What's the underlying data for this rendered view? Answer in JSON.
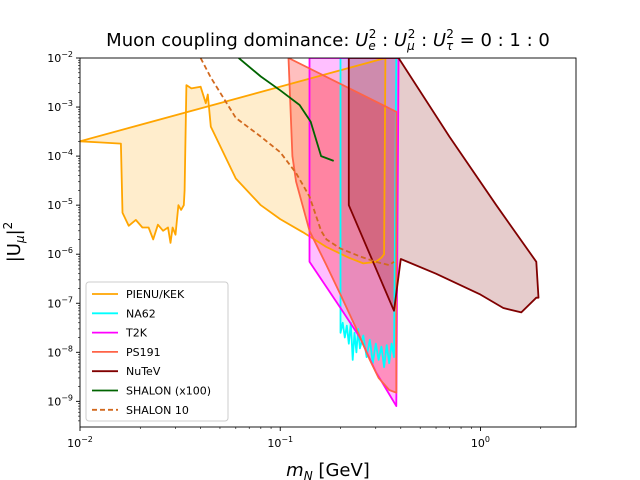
{
  "chart_data": {
    "type": "line",
    "title_parts": {
      "prefix": "Muon coupling dominance: ",
      "formula": [
        "U",
        "e",
        "2",
        " : ",
        "U",
        "μ",
        "2",
        " : ",
        "U",
        "τ",
        "2",
        " = 0 : 1 : 0"
      ]
    },
    "xlabel": {
      "var": "m",
      "sub": "N",
      "unit": " [GeV]"
    },
    "ylabel": {
      "text": "|U",
      "sub": "μ",
      "close": "|",
      "sup": "2"
    },
    "x_scale": "log",
    "y_scale": "log",
    "xlim": [
      0.01,
      3.0
    ],
    "ylim": [
      3e-10,
      0.01
    ],
    "x_ticks": [
      {
        "value": 0.01,
        "base": "10",
        "exp": "−2"
      },
      {
        "value": 0.1,
        "base": "10",
        "exp": "−1"
      },
      {
        "value": 1.0,
        "base": "10",
        "exp": "0"
      }
    ],
    "y_ticks": [
      {
        "value": 1e-09,
        "base": "10",
        "exp": "−9"
      },
      {
        "value": 1e-08,
        "base": "10",
        "exp": "−8"
      },
      {
        "value": 1e-07,
        "base": "10",
        "exp": "−7"
      },
      {
        "value": 1e-06,
        "base": "10",
        "exp": "−6"
      },
      {
        "value": 1e-05,
        "base": "10",
        "exp": "−5"
      },
      {
        "value": 0.0001,
        "base": "10",
        "exp": "−4"
      },
      {
        "value": 0.001,
        "base": "10",
        "exp": "−3"
      },
      {
        "value": 0.01,
        "base": "10",
        "exp": "−2"
      }
    ],
    "grid": false,
    "legend_position": "lower-left",
    "series": [
      {
        "name": "PIENU/KEK",
        "color": "#FFA500",
        "fill": "#FFA500",
        "fill_opacity": 0.2,
        "style": "solid",
        "x": [
          0.01,
          0.0125,
          0.016,
          0.0163,
          0.0175,
          0.019,
          0.0205,
          0.022,
          0.0232,
          0.0245,
          0.026,
          0.0275,
          0.0283,
          0.029,
          0.03,
          0.031,
          0.032,
          0.033,
          0.0333,
          0.034,
          0.036,
          0.04,
          0.0425,
          0.0435,
          0.045,
          0.06,
          0.08,
          0.1,
          0.13,
          0.17,
          0.22,
          0.26,
          0.3,
          0.32,
          0.33,
          0.335
        ],
        "y": [
          0.0002,
          0.00019,
          0.00018,
          7e-06,
          3.8e-06,
          5e-06,
          3.5e-06,
          3.5e-06,
          2e-06,
          4e-06,
          3e-06,
          3.5e-06,
          1.7e-06,
          3.5e-06,
          2.5e-06,
          1e-05,
          8e-06,
          1e-05,
          2e-05,
          0.0028,
          0.0024,
          0.0026,
          0.0012,
          0.0018,
          0.0004,
          3.5e-05,
          1e-05,
          5.2e-06,
          2.8e-06,
          1.4e-06,
          8.5e-07,
          6.5e-07,
          7e-07,
          8.5e-07,
          1e-06,
          0.01
        ],
        "closed": true
      },
      {
        "name": "NA62",
        "color": "#00FFFF",
        "fill": "#00CED1",
        "fill_opacity": 0.15,
        "style": "solid",
        "x": [
          0.2,
          0.2,
          0.205,
          0.21,
          0.215,
          0.22,
          0.225,
          0.23,
          0.235,
          0.24,
          0.245,
          0.25,
          0.26,
          0.27,
          0.28,
          0.29,
          0.3,
          0.31,
          0.32,
          0.33,
          0.34,
          0.35,
          0.36,
          0.365,
          0.37,
          0.38
        ],
        "y": [
          0.01,
          2.5e-08,
          4e-08,
          2e-08,
          3.5e-08,
          1.5e-08,
          4e-08,
          7e-09,
          2.5e-08,
          1e-08,
          3e-08,
          1.2e-08,
          2.2e-08,
          8e-09,
          1.8e-08,
          6e-09,
          1.5e-08,
          7e-09,
          1.3e-08,
          5e-09,
          1.4e-08,
          6e-09,
          1.5e-08,
          1.1e-08,
          8e-09,
          0.01
        ],
        "closed": true
      },
      {
        "name": "T2K",
        "color": "#FF00FF",
        "fill": "#FF00FF",
        "fill_opacity": 0.25,
        "style": "solid",
        "x": [
          0.14,
          0.14,
          0.2,
          0.25,
          0.3,
          0.34,
          0.38,
          0.39
        ],
        "y": [
          0.01,
          7e-07,
          8e-08,
          2e-08,
          4e-09,
          1.7e-09,
          8e-10,
          0.01
        ],
        "closed": true
      },
      {
        "name": "PS191",
        "color": "#FF6347",
        "fill": "#FF0000",
        "fill_opacity": 0.25,
        "style": "solid",
        "x": [
          0.11,
          0.115,
          0.12,
          0.14,
          0.17,
          0.2,
          0.24,
          0.28,
          0.31,
          0.35,
          0.38,
          0.38
        ],
        "y": [
          0.01,
          0.0001,
          3e-05,
          3e-06,
          6e-07,
          1.5e-07,
          3e-08,
          7e-09,
          3e-09,
          1.7e-09,
          1.5e-09,
          0.0008
        ],
        "closed": true
      },
      {
        "name": "NuTeV",
        "color": "#800000",
        "fill": "#800000",
        "fill_opacity": 0.2,
        "style": "solid",
        "x": [
          0.22,
          0.22,
          0.37,
          0.4,
          0.6,
          1.0,
          1.3,
          1.6,
          1.9,
          1.95,
          1.9,
          1.2,
          0.7,
          0.39
        ],
        "y": [
          0.01,
          1e-05,
          7e-08,
          8e-07,
          4e-07,
          1.5e-07,
          8e-08,
          6.5e-08,
          1.3e-07,
          1.3e-07,
          7e-07,
          1e-05,
          0.00025,
          0.01
        ],
        "closed": true
      },
      {
        "name": "SHALON (x100)",
        "color": "#006400",
        "fill": "none",
        "fill_opacity": 0,
        "style": "solid",
        "x": [
          0.062,
          0.08,
          0.1,
          0.125,
          0.142,
          0.16,
          0.185
        ],
        "y": [
          0.01,
          0.0042,
          0.0022,
          0.0011,
          0.0005,
          0.0001,
          8e-05
        ],
        "closed": false
      },
      {
        "name": "SHALON 10",
        "color": "#D2691E",
        "fill": "none",
        "fill_opacity": 0,
        "style": "dashed",
        "x": [
          0.04,
          0.045,
          0.06,
          0.08,
          0.1,
          0.12,
          0.14,
          0.16,
          0.17,
          0.2,
          0.25,
          0.3,
          0.35,
          0.37
        ],
        "y": [
          0.01,
          0.004,
          0.0006,
          0.00025,
          0.00012,
          4.5e-05,
          1.5e-05,
          3e-06,
          2e-06,
          1.3e-06,
          9e-07,
          7e-07,
          6e-07,
          7e-07
        ],
        "closed": false
      }
    ]
  }
}
